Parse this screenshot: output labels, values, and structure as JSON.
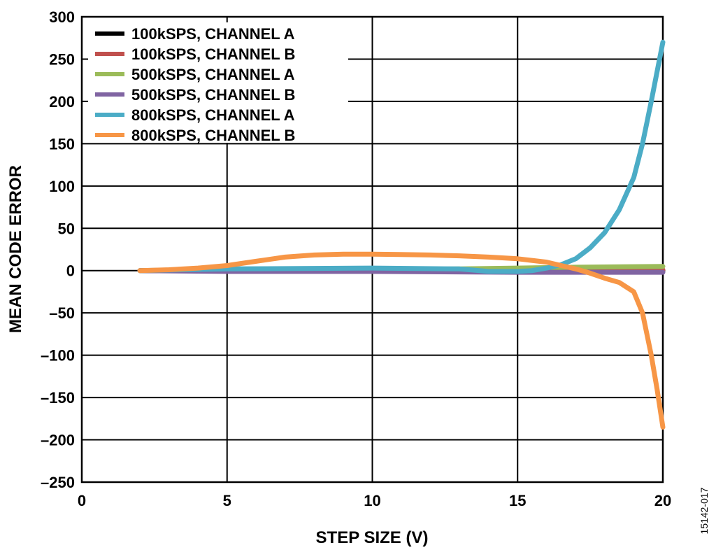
{
  "chart_data": {
    "type": "line",
    "title": "",
    "xlabel": "STEP SIZE (V)",
    "ylabel": "MEAN CODE ERROR",
    "xlim": [
      0,
      20
    ],
    "ylim": [
      -250,
      300
    ],
    "xticks": [
      0,
      5,
      10,
      15,
      20
    ],
    "yticks": [
      300,
      250,
      200,
      150,
      100,
      50,
      0,
      -50,
      -100,
      -150,
      -200,
      -250
    ],
    "ytick_labels": [
      "300",
      "250",
      "200",
      "150",
      "100",
      "50",
      "0",
      "–50",
      "–100",
      "–150",
      "–200",
      "–250"
    ],
    "grid": true,
    "legend_position": "top-left",
    "series": [
      {
        "name": "100kSPS, CHANNEL A",
        "color": "#000000",
        "x": [
          2,
          5,
          10,
          15,
          20
        ],
        "y": [
          0,
          0,
          0,
          0,
          0
        ]
      },
      {
        "name": "100kSPS, CHANNEL B",
        "color": "#c0504d",
        "x": [
          2,
          5,
          10,
          15,
          20
        ],
        "y": [
          0,
          0,
          0,
          0.5,
          1
        ]
      },
      {
        "name": "500kSPS, CHANNEL A",
        "color": "#9bbb59",
        "x": [
          2,
          5,
          10,
          13,
          15,
          17,
          20
        ],
        "y": [
          0,
          1,
          1,
          2,
          3,
          4,
          5
        ]
      },
      {
        "name": "500kSPS, CHANNEL B",
        "color": "#8064a2",
        "x": [
          2,
          5,
          10,
          15,
          20
        ],
        "y": [
          0,
          -1,
          -1,
          -2,
          -2
        ]
      },
      {
        "name": "800kSPS, CHANNEL A",
        "color": "#4bacc6",
        "x": [
          2,
          5,
          10,
          13,
          14,
          15,
          15.5,
          16,
          16.5,
          17,
          17.5,
          18,
          18.5,
          19,
          19.3,
          19.6,
          20
        ],
        "y": [
          0,
          2,
          3,
          2,
          -1,
          -1,
          0,
          3,
          7,
          14,
          27,
          45,
          72,
          110,
          150,
          200,
          270
        ]
      },
      {
        "name": "800kSPS, CHANNEL B",
        "color": "#f79646",
        "x": [
          2,
          3,
          4,
          5,
          6,
          7,
          8,
          9,
          10,
          11,
          12,
          13,
          14,
          15,
          16,
          16.5,
          17,
          17.5,
          18,
          18.5,
          19,
          19.3,
          19.6,
          19.8,
          20
        ],
        "y": [
          0,
          1,
          3,
          6,
          11,
          16,
          18.5,
          19.5,
          19.5,
          19,
          18.5,
          17.5,
          16,
          14,
          10,
          6,
          2,
          -3,
          -9,
          -14,
          -25,
          -50,
          -100,
          -140,
          -185
        ]
      }
    ]
  },
  "figure_id": "15142-017"
}
